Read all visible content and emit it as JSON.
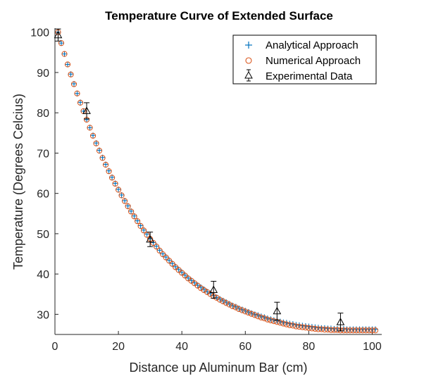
{
  "chart_data": {
    "type": "scatter",
    "title": "Temperature Curve of Extended Surface",
    "xlabel": "Distance up Aluminum Bar (cm)",
    "ylabel": "Temperature (Degrees Celcius)",
    "xlim": [
      0,
      103
    ],
    "ylim": [
      25,
      101
    ],
    "xticks": [
      0,
      20,
      40,
      60,
      80,
      100
    ],
    "yticks": [
      30,
      40,
      50,
      60,
      70,
      80,
      90,
      100
    ],
    "grid": false,
    "legend_position": "top-right",
    "series": [
      {
        "name": "Analytical Approach",
        "marker": "plus",
        "color": "#0072BD",
        "x": [
          1,
          2,
          3,
          4,
          5,
          6,
          7,
          8,
          9,
          10,
          11,
          12,
          13,
          14,
          15,
          16,
          17,
          18,
          19,
          20,
          21,
          22,
          23,
          24,
          25,
          26,
          27,
          28,
          29,
          30,
          31,
          32,
          33,
          34,
          35,
          36,
          37,
          38,
          39,
          40,
          41,
          42,
          43,
          44,
          45,
          46,
          47,
          48,
          49,
          50,
          51,
          52,
          53,
          54,
          55,
          56,
          57,
          58,
          59,
          60,
          61,
          62,
          63,
          64,
          65,
          66,
          67,
          68,
          69,
          70,
          71,
          72,
          73,
          74,
          75,
          76,
          77,
          78,
          79,
          80,
          81,
          82,
          83,
          84,
          85,
          86,
          87,
          88,
          89,
          90,
          91,
          92,
          93,
          94,
          95,
          96,
          97,
          98,
          99,
          100,
          101
        ],
        "y": [
          100.0,
          97.3,
          94.6,
          92.0,
          89.6,
          87.2,
          84.8,
          82.6,
          80.4,
          78.3,
          76.3,
          74.4,
          72.5,
          70.7,
          68.9,
          67.2,
          65.6,
          64.0,
          62.5,
          61.0,
          59.6,
          58.2,
          56.9,
          55.6,
          54.4,
          53.2,
          52.0,
          50.9,
          49.9,
          48.8,
          47.8,
          46.9,
          45.9,
          45.0,
          44.2,
          43.4,
          42.6,
          41.8,
          41.1,
          40.4,
          39.7,
          39.0,
          38.4,
          37.8,
          37.2,
          36.7,
          36.2,
          35.6,
          35.2,
          34.7,
          34.2,
          33.8,
          33.4,
          33.0,
          32.6,
          32.2,
          31.9,
          31.5,
          31.2,
          30.9,
          30.6,
          30.3,
          30.0,
          29.8,
          29.5,
          29.3,
          29.0,
          28.8,
          28.6,
          28.4,
          28.2,
          28.0,
          27.9,
          27.7,
          27.6,
          27.4,
          27.3,
          27.2,
          27.1,
          27.0,
          26.9,
          26.8,
          26.7,
          26.6,
          26.6,
          26.5,
          26.5,
          26.4,
          26.4,
          26.4,
          26.4,
          26.3,
          26.3,
          26.3,
          26.3,
          26.3,
          26.3,
          26.3,
          26.3,
          26.3,
          26.3
        ]
      },
      {
        "name": "Numerical Approach",
        "marker": "circle",
        "color": "#D95319",
        "x": [
          1,
          2,
          3,
          4,
          5,
          6,
          7,
          8,
          9,
          10,
          11,
          12,
          13,
          14,
          15,
          16,
          17,
          18,
          19,
          20,
          21,
          22,
          23,
          24,
          25,
          26,
          27,
          28,
          29,
          30,
          31,
          32,
          33,
          34,
          35,
          36,
          37,
          38,
          39,
          40,
          41,
          42,
          43,
          44,
          45,
          46,
          47,
          48,
          49,
          50,
          51,
          52,
          53,
          54,
          55,
          56,
          57,
          58,
          59,
          60,
          61,
          62,
          63,
          64,
          65,
          66,
          67,
          68,
          69,
          70,
          71,
          72,
          73,
          74,
          75,
          76,
          77,
          78,
          79,
          80,
          81,
          82,
          83,
          84,
          85,
          86,
          87,
          88,
          89,
          90,
          91,
          92,
          93,
          94,
          95,
          96,
          97,
          98,
          99,
          100,
          101
        ],
        "y": [
          100.0,
          97.3,
          94.6,
          92.0,
          89.5,
          87.1,
          84.8,
          82.5,
          80.4,
          78.3,
          76.3,
          74.3,
          72.4,
          70.6,
          68.8,
          67.1,
          65.5,
          63.9,
          62.4,
          60.9,
          59.5,
          58.1,
          56.8,
          55.5,
          54.3,
          53.1,
          51.9,
          50.8,
          49.7,
          48.7,
          47.7,
          46.8,
          45.8,
          44.9,
          44.1,
          43.3,
          42.5,
          41.7,
          41.0,
          40.3,
          39.6,
          38.9,
          38.3,
          37.7,
          37.1,
          36.5,
          36.0,
          35.5,
          35.0,
          34.5,
          34.1,
          33.6,
          33.2,
          32.8,
          32.4,
          32.0,
          31.7,
          31.3,
          31.0,
          30.7,
          30.4,
          30.1,
          29.8,
          29.5,
          29.2,
          29.0,
          28.7,
          28.5,
          28.3,
          28.1,
          27.9,
          27.7,
          27.5,
          27.3,
          27.2,
          27.0,
          26.9,
          26.8,
          26.7,
          26.6,
          26.5,
          26.4,
          26.3,
          26.3,
          26.2,
          26.2,
          26.1,
          26.1,
          26.1,
          26.0,
          26.0,
          26.0,
          26.0,
          26.0,
          26.0,
          26.0,
          26.0,
          26.0,
          26.0,
          26.0,
          26.0
        ]
      },
      {
        "name": "Experimental Data",
        "marker": "triangle",
        "color": "#000000",
        "x": [
          1,
          10,
          30,
          50,
          70,
          90
        ],
        "y": [
          99.3,
          80.5,
          48.6,
          36.1,
          30.8,
          28.1
        ],
        "error": [
          1.5,
          2.0,
          1.8,
          2.1,
          2.2,
          2.2
        ]
      }
    ]
  }
}
